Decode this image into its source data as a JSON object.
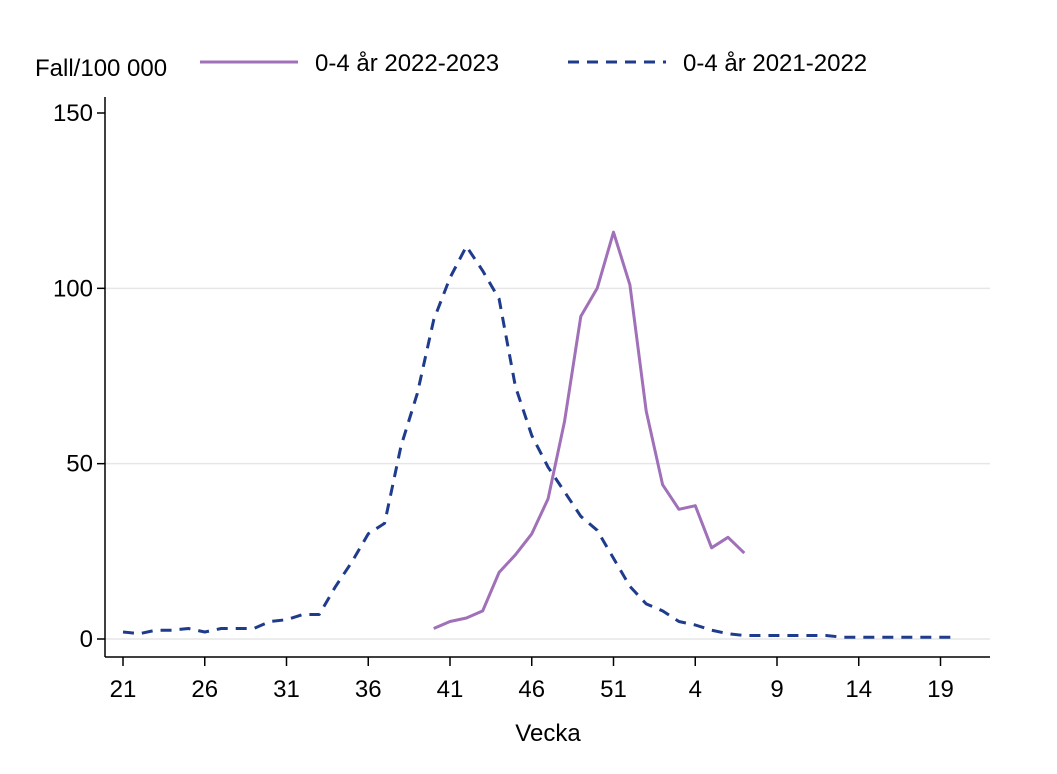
{
  "chart_data": {
    "type": "line",
    "ylabel": "Fall/100 000",
    "xlabel": "Vecka",
    "ylim": [
      0,
      150
    ],
    "yticks": [
      0,
      50,
      100,
      150
    ],
    "grid": true,
    "legend_position": "top",
    "x_categories": [
      "21",
      "22",
      "23",
      "24",
      "25",
      "26",
      "27",
      "28",
      "29",
      "30",
      "31",
      "32",
      "33",
      "34",
      "35",
      "36",
      "37",
      "38",
      "39",
      "40",
      "41",
      "42",
      "43",
      "44",
      "45",
      "46",
      "47",
      "48",
      "49",
      "50",
      "51",
      "52",
      "1",
      "2",
      "3",
      "4",
      "5",
      "6",
      "7",
      "8",
      "9",
      "10",
      "11",
      "12",
      "13",
      "14",
      "15",
      "16",
      "17",
      "18",
      "19",
      "20"
    ],
    "xtick_labels": [
      "21",
      "26",
      "31",
      "36",
      "41",
      "46",
      "51",
      "4",
      "9",
      "14",
      "19"
    ],
    "series": [
      {
        "name": "0-4 år 2022-2023",
        "color": "#a070b8",
        "style": "solid",
        "values": [
          null,
          null,
          null,
          null,
          null,
          null,
          null,
          null,
          null,
          null,
          null,
          null,
          null,
          null,
          null,
          null,
          null,
          null,
          null,
          3,
          5,
          6,
          8,
          19,
          24,
          30,
          40,
          62,
          92,
          100,
          116,
          101,
          65,
          44,
          37,
          38,
          26,
          29,
          24.5,
          null,
          null,
          null,
          null,
          null,
          null,
          null,
          null,
          null,
          null,
          null,
          null,
          null
        ]
      },
      {
        "name": "0-4 år 2021-2022",
        "color": "#1f3b8c",
        "style": "dashed",
        "values": [
          2,
          1.5,
          2.5,
          2.5,
          3,
          2,
          3,
          3,
          3,
          5,
          5.5,
          7,
          7,
          15,
          22,
          30,
          33,
          55,
          70,
          91,
          103,
          112,
          105,
          97,
          72,
          58,
          49,
          42,
          35,
          31,
          23,
          15,
          10,
          8,
          5,
          4,
          2.5,
          1.5,
          1,
          1,
          1,
          1,
          1,
          1,
          0.5,
          0.5,
          0.5,
          0.5,
          0.5,
          0.5,
          0.5,
          0.5
        ]
      }
    ]
  }
}
